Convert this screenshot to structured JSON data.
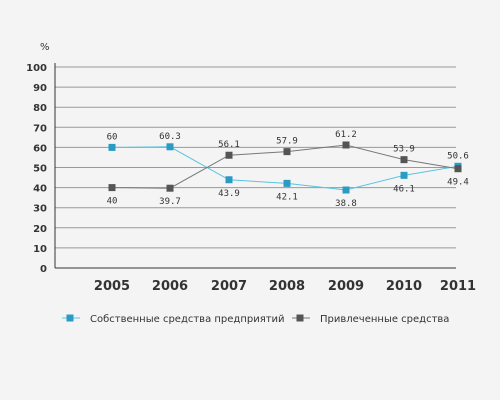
{
  "chart_data": {
    "type": "line",
    "ylabel": "%",
    "ylim": [
      0,
      100
    ],
    "yticks": [
      0,
      10,
      20,
      30,
      40,
      50,
      60,
      70,
      80,
      90,
      100
    ],
    "categories": [
      "2005",
      "2006",
      "2007",
      "2008",
      "2009",
      "2010",
      "2011"
    ],
    "series": [
      {
        "name": "Собственные средства предприятий",
        "color": "#5bc3e0",
        "marker_color": "#2a9cc4",
        "values": [
          60,
          60.3,
          43.9,
          42.1,
          38.8,
          46.1,
          50.6
        ],
        "labels": [
          "60",
          "60.3",
          "43.9",
          "42.1",
          "38.8",
          "46.1",
          "50.6"
        ]
      },
      {
        "name": "Привлеченные средства",
        "color": "#777777",
        "marker_color": "#555555",
        "values": [
          40,
          39.7,
          56.1,
          57.9,
          61.2,
          53.9,
          49.4
        ],
        "labels": [
          "40",
          "39.7",
          "56.1",
          "57.9",
          "61.2",
          "53.9",
          "49.4"
        ]
      }
    ],
    "legend": "bottom",
    "grid": true
  }
}
